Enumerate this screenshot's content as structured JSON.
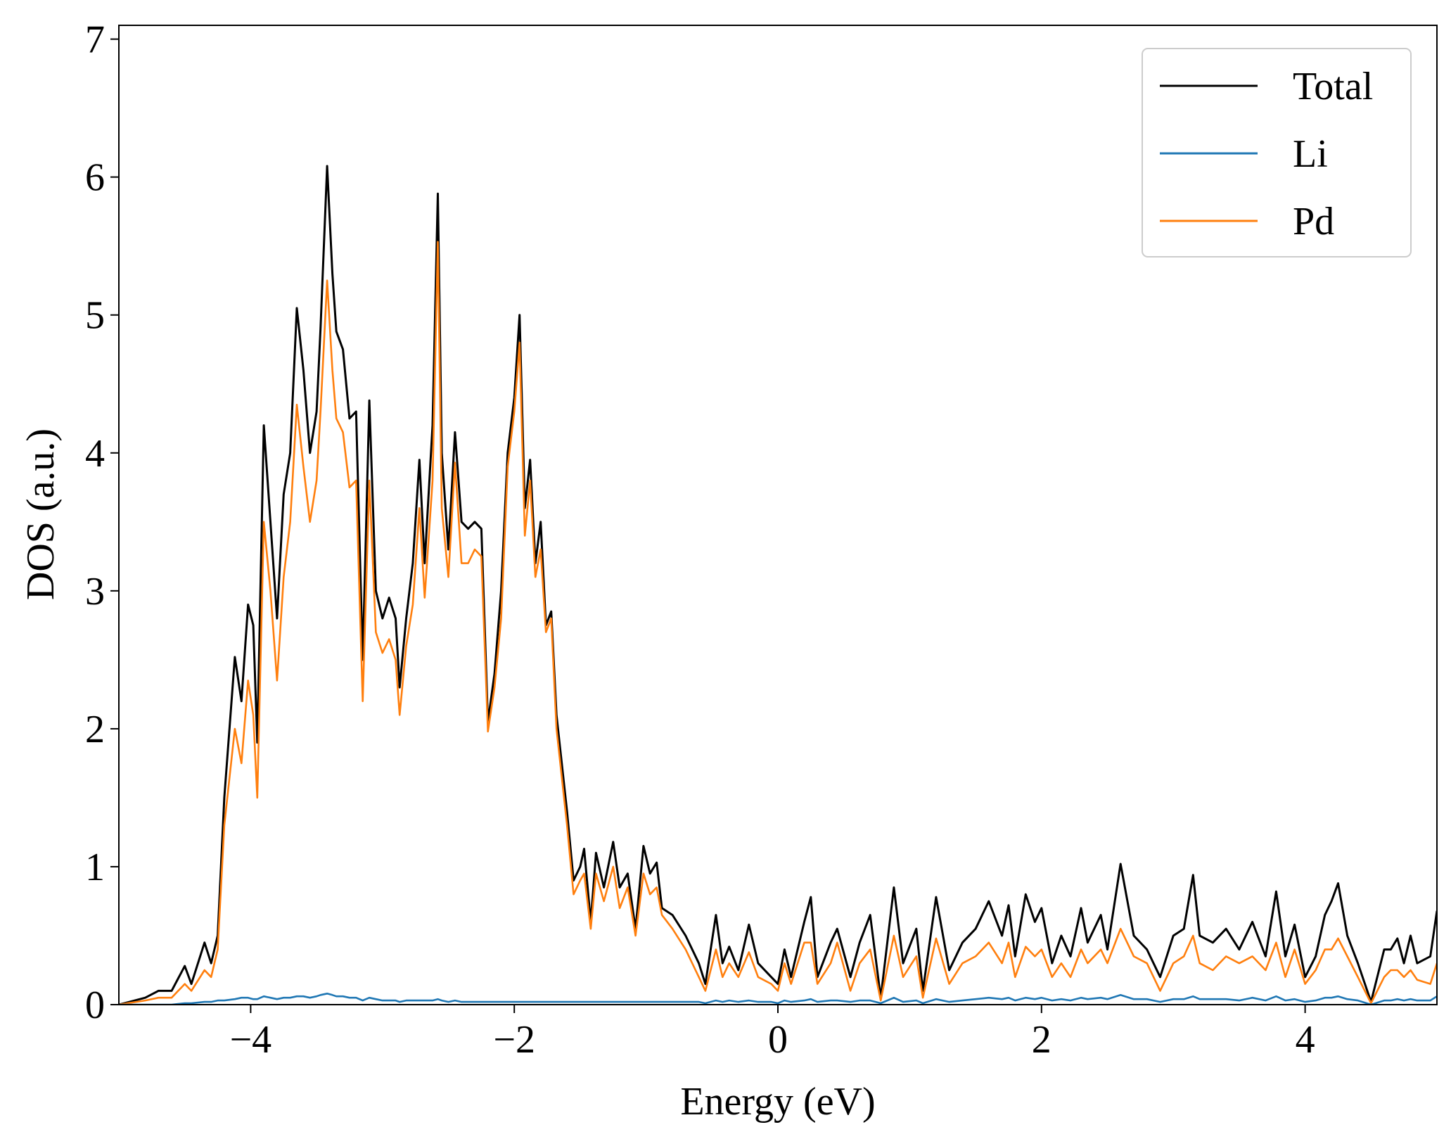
{
  "chart_data": {
    "type": "line",
    "xlabel": "Energy (eV)",
    "ylabel": "DOS (a.u.)",
    "xlim": [
      -5,
      5
    ],
    "ylim": [
      0,
      7.1
    ],
    "xticks": [
      {
        "value": -4,
        "label": "−4"
      },
      {
        "value": -2,
        "label": "−2"
      },
      0,
      2,
      4
    ],
    "yticks": [
      0,
      1,
      2,
      3,
      4,
      5,
      6,
      7
    ],
    "legend": "upper right",
    "x": [
      -5.0,
      -4.8,
      -4.7,
      -4.6,
      -4.5,
      -4.45,
      -4.35,
      -4.3,
      -4.25,
      -4.2,
      -4.12,
      -4.07,
      -4.02,
      -3.98,
      -3.95,
      -3.9,
      -3.85,
      -3.8,
      -3.75,
      -3.7,
      -3.65,
      -3.6,
      -3.55,
      -3.5,
      -3.47,
      -3.42,
      -3.38,
      -3.35,
      -3.3,
      -3.25,
      -3.2,
      -3.15,
      -3.1,
      -3.05,
      -3.0,
      -2.95,
      -2.9,
      -2.87,
      -2.82,
      -2.77,
      -2.72,
      -2.68,
      -2.62,
      -2.58,
      -2.55,
      -2.5,
      -2.45,
      -2.4,
      -2.35,
      -2.3,
      -2.25,
      -2.2,
      -2.15,
      -2.1,
      -2.05,
      -2.0,
      -1.96,
      -1.92,
      -1.88,
      -1.84,
      -1.8,
      -1.76,
      -1.72,
      -1.68,
      -1.6,
      -1.55,
      -1.5,
      -1.47,
      -1.42,
      -1.38,
      -1.32,
      -1.25,
      -1.2,
      -1.14,
      -1.08,
      -1.02,
      -0.97,
      -0.92,
      -0.88,
      -0.8,
      -0.7,
      -0.6,
      -0.55,
      -0.47,
      -0.42,
      -0.37,
      -0.3,
      -0.22,
      -0.15,
      -0.05,
      0.0,
      0.05,
      0.1,
      0.2,
      0.25,
      0.3,
      0.4,
      0.45,
      0.55,
      0.62,
      0.7,
      0.78,
      0.88,
      0.95,
      1.05,
      1.1,
      1.2,
      1.3,
      1.4,
      1.5,
      1.6,
      1.7,
      1.75,
      1.8,
      1.88,
      1.95,
      2.0,
      2.08,
      2.15,
      2.22,
      2.3,
      2.35,
      2.45,
      2.5,
      2.6,
      2.7,
      2.8,
      2.9,
      3.0,
      3.08,
      3.15,
      3.2,
      3.3,
      3.4,
      3.5,
      3.6,
      3.7,
      3.78,
      3.85,
      3.92,
      4.0,
      4.08,
      4.15,
      4.2,
      4.25,
      4.32,
      4.4,
      4.5,
      4.6,
      4.65,
      4.7,
      4.75,
      4.8,
      4.85,
      4.95,
      5.0
    ],
    "series": [
      {
        "name": "Total",
        "color": "#000000",
        "values": [
          0,
          0.05,
          0.1,
          0.1,
          0.28,
          0.15,
          0.45,
          0.3,
          0.5,
          1.5,
          2.52,
          2.2,
          2.9,
          2.75,
          1.9,
          4.2,
          3.5,
          2.8,
          3.7,
          4.0,
          5.05,
          4.6,
          4.0,
          4.3,
          4.9,
          6.08,
          5.3,
          4.88,
          4.75,
          4.25,
          4.3,
          2.5,
          4.38,
          3.0,
          2.8,
          2.95,
          2.8,
          2.3,
          2.8,
          3.2,
          3.95,
          3.2,
          4.2,
          5.88,
          4.0,
          3.3,
          4.15,
          3.5,
          3.45,
          3.5,
          3.45,
          2.05,
          2.4,
          3.0,
          4.0,
          4.4,
          5.0,
          3.6,
          3.95,
          3.2,
          3.5,
          2.75,
          2.85,
          2.1,
          1.4,
          0.9,
          1.0,
          1.13,
          0.6,
          1.1,
          0.85,
          1.18,
          0.85,
          0.95,
          0.55,
          1.15,
          0.95,
          1.03,
          0.7,
          0.65,
          0.5,
          0.3,
          0.15,
          0.65,
          0.3,
          0.42,
          0.25,
          0.58,
          0.3,
          0.2,
          0.15,
          0.4,
          0.2,
          0.6,
          0.78,
          0.2,
          0.45,
          0.55,
          0.2,
          0.45,
          0.65,
          0.05,
          0.85,
          0.3,
          0.55,
          0.1,
          0.78,
          0.25,
          0.45,
          0.55,
          0.75,
          0.5,
          0.72,
          0.35,
          0.8,
          0.6,
          0.7,
          0.3,
          0.5,
          0.35,
          0.7,
          0.45,
          0.65,
          0.4,
          1.02,
          0.5,
          0.4,
          0.2,
          0.5,
          0.55,
          0.94,
          0.5,
          0.45,
          0.55,
          0.4,
          0.6,
          0.35,
          0.82,
          0.35,
          0.58,
          0.2,
          0.35,
          0.65,
          0.75,
          0.88,
          0.5,
          0.3,
          0.02,
          0.4,
          0.4,
          0.48,
          0.3,
          0.5,
          0.3,
          0.35,
          0.68
        ]
      },
      {
        "name": "Li",
        "color": "#1f77b4",
        "values": [
          0,
          0,
          0,
          0,
          0.01,
          0.01,
          0.02,
          0.02,
          0.03,
          0.03,
          0.04,
          0.05,
          0.05,
          0.04,
          0.04,
          0.06,
          0.05,
          0.04,
          0.05,
          0.05,
          0.06,
          0.06,
          0.05,
          0.06,
          0.07,
          0.08,
          0.07,
          0.06,
          0.06,
          0.05,
          0.05,
          0.03,
          0.05,
          0.04,
          0.03,
          0.03,
          0.03,
          0.02,
          0.03,
          0.03,
          0.03,
          0.03,
          0.03,
          0.04,
          0.03,
          0.02,
          0.03,
          0.02,
          0.02,
          0.02,
          0.02,
          0.02,
          0.02,
          0.02,
          0.02,
          0.02,
          0.02,
          0.02,
          0.02,
          0.02,
          0.02,
          0.02,
          0.02,
          0.02,
          0.02,
          0.02,
          0.02,
          0.02,
          0.02,
          0.02,
          0.02,
          0.02,
          0.02,
          0.02,
          0.02,
          0.02,
          0.02,
          0.02,
          0.02,
          0.02,
          0.02,
          0.02,
          0.01,
          0.03,
          0.02,
          0.03,
          0.02,
          0.03,
          0.02,
          0.02,
          0.01,
          0.03,
          0.02,
          0.03,
          0.04,
          0.02,
          0.03,
          0.03,
          0.02,
          0.03,
          0.03,
          0.01,
          0.05,
          0.02,
          0.03,
          0.01,
          0.04,
          0.02,
          0.03,
          0.04,
          0.05,
          0.04,
          0.05,
          0.03,
          0.05,
          0.04,
          0.05,
          0.03,
          0.04,
          0.03,
          0.05,
          0.04,
          0.05,
          0.04,
          0.07,
          0.04,
          0.04,
          0.02,
          0.04,
          0.04,
          0.06,
          0.04,
          0.04,
          0.04,
          0.03,
          0.05,
          0.03,
          0.06,
          0.03,
          0.04,
          0.02,
          0.03,
          0.05,
          0.05,
          0.06,
          0.04,
          0.03,
          0.0,
          0.03,
          0.03,
          0.04,
          0.03,
          0.04,
          0.03,
          0.03,
          0.06
        ]
      },
      {
        "name": "Pd",
        "color": "#ff7f0e",
        "values": [
          0,
          0.03,
          0.05,
          0.05,
          0.15,
          0.1,
          0.25,
          0.2,
          0.4,
          1.3,
          2.0,
          1.75,
          2.35,
          2.1,
          1.5,
          3.5,
          3.0,
          2.35,
          3.1,
          3.5,
          4.35,
          3.9,
          3.5,
          3.8,
          4.3,
          5.25,
          4.6,
          4.25,
          4.15,
          3.75,
          3.8,
          2.2,
          3.8,
          2.7,
          2.55,
          2.65,
          2.5,
          2.1,
          2.6,
          2.9,
          3.6,
          2.95,
          3.8,
          5.53,
          3.6,
          3.1,
          3.93,
          3.2,
          3.2,
          3.3,
          3.25,
          1.98,
          2.3,
          2.8,
          3.9,
          4.3,
          4.8,
          3.4,
          3.8,
          3.1,
          3.3,
          2.7,
          2.8,
          2.0,
          1.3,
          0.8,
          0.9,
          0.95,
          0.55,
          0.95,
          0.75,
          1.0,
          0.7,
          0.85,
          0.5,
          0.95,
          0.8,
          0.85,
          0.65,
          0.55,
          0.4,
          0.2,
          0.1,
          0.4,
          0.2,
          0.3,
          0.2,
          0.38,
          0.2,
          0.15,
          0.1,
          0.3,
          0.15,
          0.45,
          0.45,
          0.15,
          0.3,
          0.45,
          0.1,
          0.3,
          0.4,
          0.03,
          0.5,
          0.2,
          0.35,
          0.05,
          0.48,
          0.15,
          0.3,
          0.35,
          0.45,
          0.3,
          0.45,
          0.2,
          0.42,
          0.35,
          0.4,
          0.2,
          0.3,
          0.2,
          0.4,
          0.3,
          0.4,
          0.3,
          0.55,
          0.35,
          0.3,
          0.1,
          0.3,
          0.35,
          0.5,
          0.3,
          0.25,
          0.35,
          0.3,
          0.35,
          0.25,
          0.45,
          0.2,
          0.4,
          0.15,
          0.25,
          0.4,
          0.4,
          0.48,
          0.35,
          0.2,
          0.01,
          0.2,
          0.25,
          0.25,
          0.2,
          0.25,
          0.18,
          0.15,
          0.3
        ]
      }
    ]
  }
}
